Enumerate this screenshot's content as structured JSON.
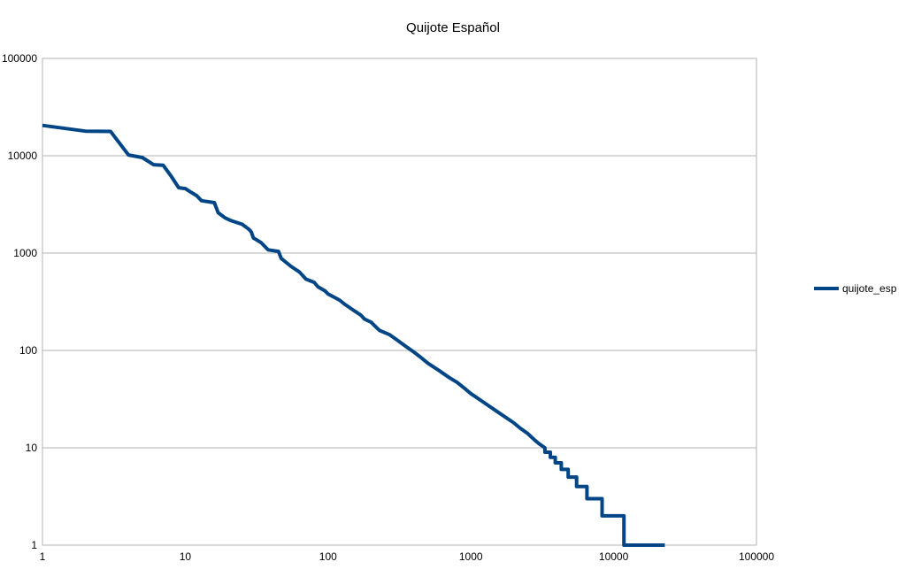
{
  "chart_data": {
    "type": "line",
    "title": "Quijote Español",
    "xlabel": "",
    "ylabel": "",
    "xscale": "log",
    "yscale": "log",
    "xlim": [
      1,
      100000
    ],
    "ylim": [
      1,
      100000
    ],
    "xticks": [
      "1",
      "10",
      "100",
      "1000",
      "10000",
      "100000"
    ],
    "yticks": [
      "1",
      "10",
      "100",
      "1000",
      "10000",
      "100000"
    ],
    "grid": "horizontal",
    "legend": "right",
    "color": "#004586",
    "series": [
      {
        "name": "quijote_esp",
        "points": [
          [
            1,
            20500
          ],
          [
            2,
            17900
          ],
          [
            3,
            17800
          ],
          [
            4,
            10200
          ],
          [
            5,
            9600
          ],
          [
            6,
            8100
          ],
          [
            7,
            8000
          ],
          [
            8,
            6100
          ],
          [
            9,
            4700
          ],
          [
            10,
            4600
          ],
          [
            11,
            4200
          ],
          [
            12,
            3900
          ],
          [
            13,
            3450
          ],
          [
            16,
            3300
          ],
          [
            17,
            2600
          ],
          [
            19,
            2300
          ],
          [
            21,
            2150
          ],
          [
            25,
            1980
          ],
          [
            28,
            1750
          ],
          [
            29,
            1650
          ],
          [
            30,
            1430
          ],
          [
            34,
            1280
          ],
          [
            38,
            1080
          ],
          [
            45,
            1040
          ],
          [
            47,
            880
          ],
          [
            55,
            730
          ],
          [
            63,
            640
          ],
          [
            70,
            540
          ],
          [
            80,
            500
          ],
          [
            85,
            450
          ],
          [
            95,
            410
          ],
          [
            100,
            380
          ],
          [
            120,
            330
          ],
          [
            130,
            300
          ],
          [
            150,
            260
          ],
          [
            170,
            230
          ],
          [
            180,
            210
          ],
          [
            200,
            195
          ],
          [
            220,
            170
          ],
          [
            230,
            160
          ],
          [
            270,
            145
          ],
          [
            300,
            130
          ],
          [
            350,
            110
          ],
          [
            400,
            96
          ],
          [
            450,
            84
          ],
          [
            500,
            74
          ],
          [
            600,
            62
          ],
          [
            700,
            53
          ],
          [
            800,
            47
          ],
          [
            900,
            41
          ],
          [
            1000,
            36
          ],
          [
            1200,
            30
          ],
          [
            1500,
            24
          ],
          [
            2000,
            18
          ],
          [
            2200,
            16
          ],
          [
            2500,
            14
          ],
          [
            2800,
            12
          ],
          [
            3000,
            11
          ],
          [
            3300,
            10
          ],
          [
            3300,
            9
          ],
          [
            3600,
            9
          ],
          [
            3600,
            8
          ],
          [
            3900,
            8
          ],
          [
            3900,
            7
          ],
          [
            4300,
            7
          ],
          [
            4300,
            6
          ],
          [
            4800,
            6
          ],
          [
            4800,
            5
          ],
          [
            5500,
            5
          ],
          [
            5500,
            4
          ],
          [
            6500,
            4
          ],
          [
            6500,
            3
          ],
          [
            8300,
            3
          ],
          [
            8300,
            2
          ],
          [
            11800,
            2
          ],
          [
            11800,
            1
          ],
          [
            22800,
            1
          ]
        ]
      }
    ]
  }
}
